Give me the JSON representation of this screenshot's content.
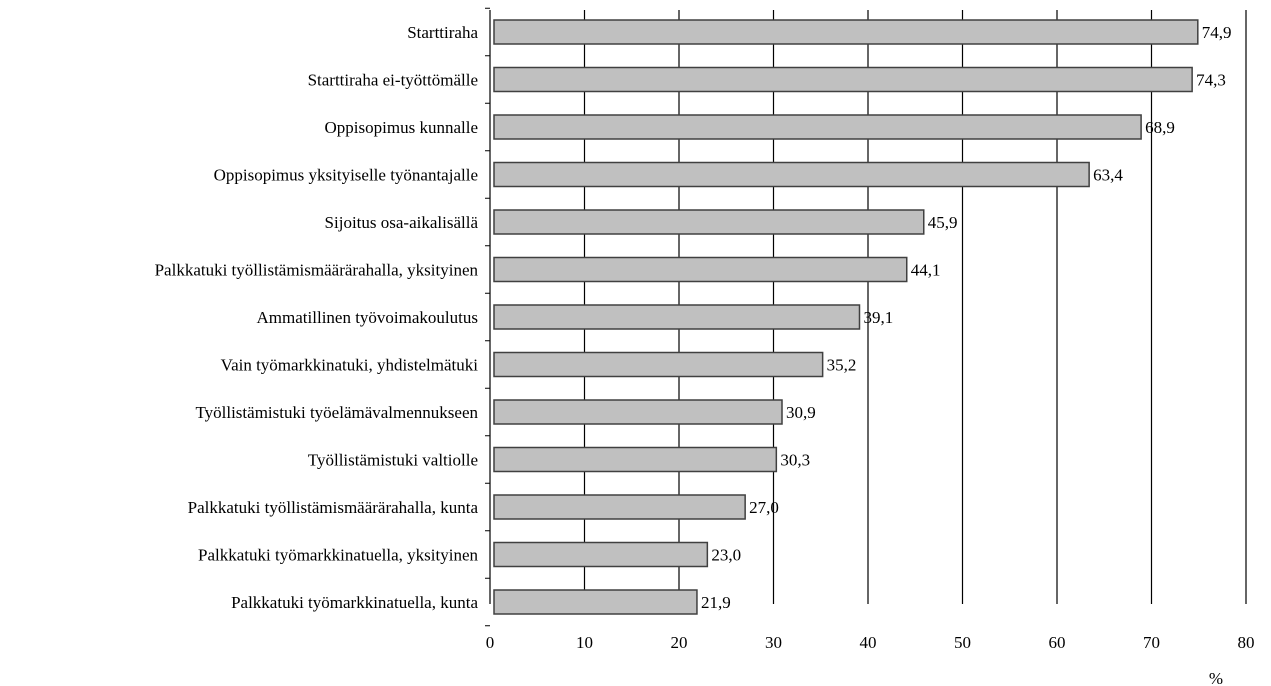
{
  "chart_data": {
    "type": "bar",
    "orientation": "horizontal",
    "categories": [
      "Starttiraha",
      "Starttiraha ei-työttömälle",
      "Oppisopimus kunnalle",
      "Oppisopimus yksityiselle työnantajalle",
      "Sijoitus osa-aikalisällä",
      "Palkkatuki työllistämismäärärahalla, yksityinen",
      "Ammatillinen työvoimakoulutus",
      "Vain työmarkkinatuki, yhdistelmätuki",
      "Työllistämistuki työelämävalmennukseen",
      "Työllistämistuki valtiolle",
      "Palkkatuki työllistämismäärärahalla, kunta",
      "Palkkatuki työmarkkinatuella, yksityinen",
      "Palkkatuki työmarkkinatuella, kunta"
    ],
    "values": [
      74.9,
      74.3,
      68.9,
      63.4,
      45.9,
      44.1,
      39.1,
      35.2,
      30.9,
      30.3,
      27.0,
      23.0,
      21.9
    ],
    "value_labels": [
      "74,9",
      "74,3",
      "68,9",
      "63,4",
      "45,9",
      "44,1",
      "39,1",
      "35,2",
      "30,9",
      "30,3",
      "27,0",
      "23,0",
      "21,9"
    ],
    "x_ticks": [
      "0",
      "10",
      "20",
      "30",
      "40",
      "50",
      "60",
      "70",
      "80"
    ],
    "xlim": [
      0,
      80
    ],
    "x_unit": "%",
    "grid": "vertical",
    "legend": "none",
    "colors": {
      "bar_fill": "#c0c0c0",
      "bar_stroke": "#404040",
      "grid": "#000000"
    }
  }
}
